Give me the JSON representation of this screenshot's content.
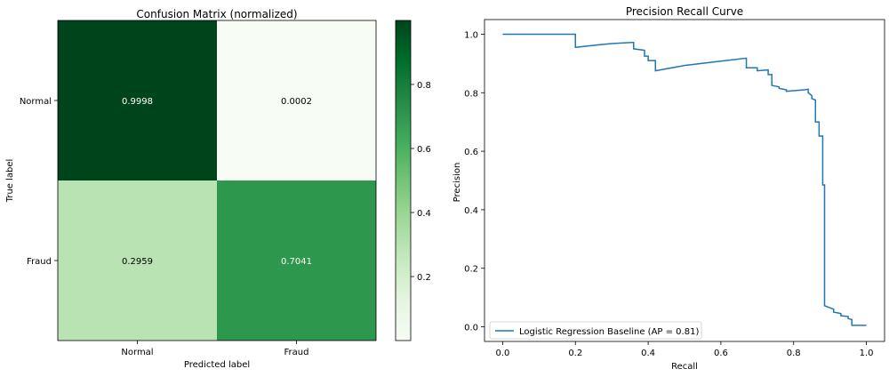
{
  "chart_data": [
    {
      "type": "heatmap",
      "title": "Confusion Matrix (normalized)",
      "xlabel": "Predicted label",
      "ylabel": "True label",
      "x_categories": [
        "Normal",
        "Fraud"
      ],
      "y_categories": [
        "Normal",
        "Fraud"
      ],
      "values": [
        [
          0.9998,
          0.0002
        ],
        [
          0.2959,
          0.7041
        ]
      ],
      "cell_labels": [
        [
          "0.9998",
          "0.0002"
        ],
        [
          "0.2959",
          "0.7041"
        ]
      ],
      "colormap": "Greens",
      "colorbar": {
        "range": [
          0.0002,
          0.9998
        ],
        "ticks": [
          0.2,
          0.4,
          0.6,
          0.8
        ],
        "tick_labels": [
          "0.2",
          "0.4",
          "0.6",
          "0.8"
        ]
      }
    },
    {
      "type": "line",
      "title": "Precision Recall Curve",
      "xlabel": "Recall",
      "ylabel": "Precision",
      "xlim": [
        -0.05,
        1.05
      ],
      "ylim": [
        -0.05,
        1.05
      ],
      "x_ticks": [
        0.0,
        0.2,
        0.4,
        0.6,
        0.8,
        1.0
      ],
      "x_tick_labels": [
        "0.0",
        "0.2",
        "0.4",
        "0.6",
        "0.8",
        "1.0"
      ],
      "y_ticks": [
        0.0,
        0.2,
        0.4,
        0.6,
        0.8,
        1.0
      ],
      "y_tick_labels": [
        "0.0",
        "0.2",
        "0.4",
        "0.6",
        "0.8",
        "1.0"
      ],
      "grid": false,
      "legend_position": "lower-left",
      "series": [
        {
          "name": "Logistic Regression Baseline (AP = 0.81)",
          "color": "#1f77b4",
          "step": true,
          "points": [
            [
              0.0,
              1.0
            ],
            [
              0.2,
              1.0
            ],
            [
              0.2,
              0.955
            ],
            [
              0.25,
              0.962
            ],
            [
              0.3,
              0.968
            ],
            [
              0.36,
              0.972
            ],
            [
              0.36,
              0.95
            ],
            [
              0.39,
              0.945
            ],
            [
              0.39,
              0.925
            ],
            [
              0.4,
              0.925
            ],
            [
              0.4,
              0.91
            ],
            [
              0.42,
              0.91
            ],
            [
              0.42,
              0.875
            ],
            [
              0.5,
              0.893
            ],
            [
              0.6,
              0.908
            ],
            [
              0.67,
              0.918
            ],
            [
              0.67,
              0.885
            ],
            [
              0.7,
              0.885
            ],
            [
              0.7,
              0.875
            ],
            [
              0.73,
              0.878
            ],
            [
              0.73,
              0.862
            ],
            [
              0.74,
              0.862
            ],
            [
              0.74,
              0.825
            ],
            [
              0.76,
              0.82
            ],
            [
              0.76,
              0.815
            ],
            [
              0.78,
              0.81
            ],
            [
              0.78,
              0.805
            ],
            [
              0.8,
              0.807
            ],
            [
              0.83,
              0.81
            ],
            [
              0.84,
              0.812
            ],
            [
              0.84,
              0.8
            ],
            [
              0.85,
              0.79
            ],
            [
              0.85,
              0.78
            ],
            [
              0.86,
              0.775
            ],
            [
              0.86,
              0.7
            ],
            [
              0.87,
              0.7
            ],
            [
              0.87,
              0.652
            ],
            [
              0.88,
              0.652
            ],
            [
              0.88,
              0.485
            ],
            [
              0.885,
              0.485
            ],
            [
              0.885,
              0.072
            ],
            [
              0.9,
              0.065
            ],
            [
              0.91,
              0.06
            ],
            [
              0.91,
              0.05
            ],
            [
              0.92,
              0.048
            ],
            [
              0.93,
              0.045
            ],
            [
              0.93,
              0.038
            ],
            [
              0.95,
              0.035
            ],
            [
              0.95,
              0.028
            ],
            [
              0.96,
              0.025
            ],
            [
              0.96,
              0.005
            ],
            [
              1.0,
              0.005
            ]
          ]
        }
      ]
    }
  ]
}
